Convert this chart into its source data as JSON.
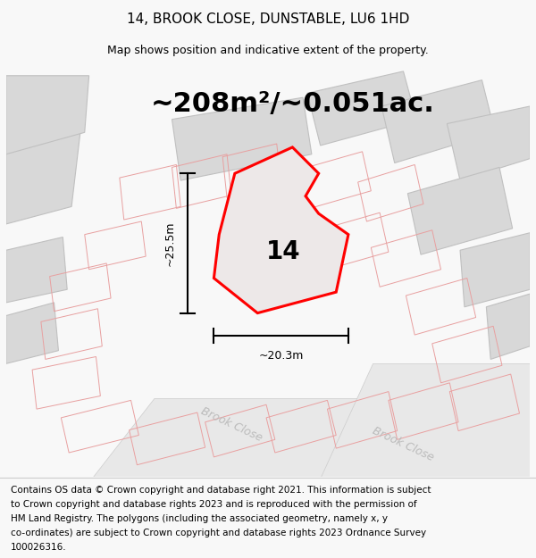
{
  "title": "14, BROOK CLOSE, DUNSTABLE, LU6 1HD",
  "subtitle": "Map shows position and indicative extent of the property.",
  "area_text": "~208m²/~0.051ac.",
  "number_label": "14",
  "dim_width": "~20.3m",
  "dim_height": "~25.5m",
  "footer_lines": [
    "Contains OS data © Crown copyright and database right 2021. This information is subject",
    "to Crown copyright and database rights 2023 and is reproduced with the permission of",
    "HM Land Registry. The polygons (including the associated geometry, namely x, y",
    "co-ordinates) are subject to Crown copyright and database rights 2023 Ordnance Survey",
    "100026316."
  ],
  "bg_color": "#f8f8f8",
  "map_bg": "#f0eeee",
  "property_color": "#ff0000",
  "neighbor_fill": "#d8d8d8",
  "neighbor_stroke": "#e8a0a0",
  "road_fill": "#e8e8e8",
  "title_fontsize": 11,
  "subtitle_fontsize": 9,
  "area_fontsize": 22,
  "number_fontsize": 20,
  "footer_fontsize": 7.5,
  "brook_close_color": "#bbbbbb",
  "dim_line_color": "black"
}
